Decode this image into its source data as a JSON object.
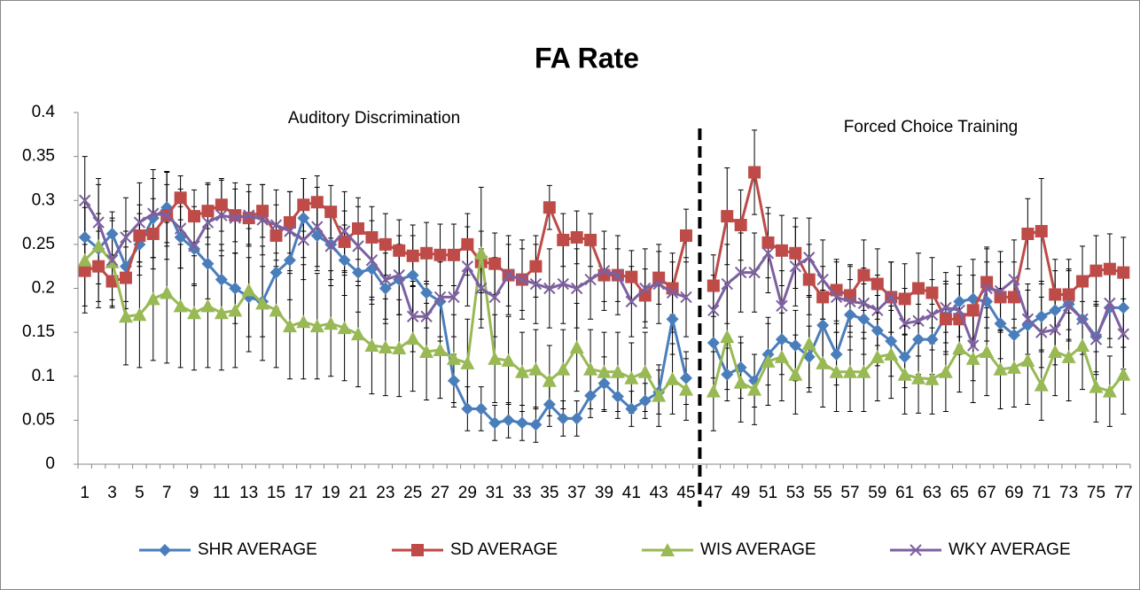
{
  "chart_data": {
    "type": "line",
    "title": "FA Rate",
    "annotations": [
      "Auditory Discrimination",
      "Forced Choice Training"
    ],
    "categories": [
      "1",
      null,
      "3",
      null,
      "5",
      null,
      "7",
      null,
      "9",
      null,
      "11",
      null,
      "13",
      null,
      "15",
      null,
      "17",
      null,
      "19",
      null,
      "21",
      null,
      "23",
      null,
      "25",
      null,
      "27",
      null,
      "29",
      null,
      "31",
      null,
      "33",
      null,
      "35",
      null,
      "37",
      null,
      "39",
      null,
      "41",
      null,
      "43",
      null,
      "45",
      null,
      "47",
      null,
      "49",
      null,
      "51",
      null,
      "53",
      null,
      "55",
      null,
      "57",
      null,
      "59",
      null,
      "61",
      null,
      "63",
      null,
      "65",
      null,
      "67",
      null,
      "69",
      null,
      "71",
      null,
      "73",
      null,
      "75",
      null,
      "77"
    ],
    "ylim": [
      0,
      0.4
    ],
    "yticks": [
      0,
      0.05,
      0.1,
      0.15,
      0.2,
      0.25,
      0.3,
      0.35,
      0.4
    ],
    "grid": false,
    "legend": "bottom",
    "series": [
      {
        "name": "SHR AVERAGE",
        "color": "#4a7ebb",
        "marker": "diamond",
        "values": [
          0.258,
          0.245,
          0.262,
          0.225,
          0.25,
          0.28,
          0.292,
          0.258,
          0.245,
          0.228,
          0.21,
          0.2,
          0.19,
          0.185,
          0.218,
          0.232,
          0.28,
          0.26,
          0.25,
          0.232,
          0.218,
          0.222,
          0.2,
          0.21,
          0.215,
          0.195,
          0.185,
          0.095,
          0.063,
          0.063,
          0.047,
          0.05,
          0.047,
          0.045,
          0.068,
          0.052,
          0.052,
          0.078,
          0.092,
          0.077,
          0.063,
          0.072,
          0.082,
          0.165,
          0.098,
          null,
          0.138,
          0.102,
          0.11,
          0.095,
          0.125,
          0.142,
          0.135,
          0.122,
          0.158,
          0.125,
          0.17,
          0.165,
          0.152,
          0.14,
          0.122,
          0.142,
          0.142,
          0.168,
          0.185,
          0.188,
          0.185,
          0.16,
          0.147,
          0.158,
          0.168,
          0.175,
          0.182,
          0.165,
          0.145,
          0.178,
          0.178
        ],
        "errors": [
          0.04,
          0.04,
          0.025,
          0.04,
          0.035,
          0.045,
          0.04,
          0.035,
          0.04,
          0.04,
          0.04,
          0.04,
          0.045,
          0.04,
          0.04,
          0.045,
          0.045,
          0.04,
          0.04,
          0.04,
          0.045,
          0.04,
          0.04,
          0.04,
          0.045,
          0.04,
          0.045,
          0.03,
          0.025,
          0.025,
          0.02,
          0.02,
          0.02,
          0.02,
          0.025,
          0.02,
          0.02,
          0.025,
          0.03,
          0.025,
          0.02,
          0.02,
          0.025,
          0.04,
          0.03,
          null,
          0.04,
          0.03,
          0.035,
          0.03,
          0.035,
          0.04,
          0.04,
          0.035,
          0.04,
          0.035,
          0.04,
          0.04,
          0.04,
          0.04,
          0.035,
          0.04,
          0.04,
          0.04,
          0.04,
          0.045,
          0.045,
          0.04,
          0.04,
          0.04,
          0.04,
          0.045,
          0.04,
          0.04,
          0.04,
          0.045,
          0.045
        ]
      },
      {
        "name": "SD AVERAGE",
        "color": "#be4b48",
        "marker": "square",
        "values": [
          0.22,
          0.225,
          0.208,
          0.212,
          0.26,
          0.262,
          0.283,
          0.303,
          0.282,
          0.288,
          0.295,
          0.283,
          0.28,
          0.288,
          0.26,
          0.275,
          0.295,
          0.298,
          0.287,
          0.253,
          0.268,
          0.258,
          0.25,
          0.243,
          0.237,
          0.24,
          0.238,
          0.238,
          0.25,
          0.23,
          0.228,
          0.215,
          0.21,
          0.225,
          0.292,
          0.255,
          0.258,
          0.255,
          0.215,
          0.215,
          0.213,
          0.192,
          0.212,
          0.2,
          0.26,
          null,
          0.203,
          0.282,
          0.272,
          0.332,
          0.252,
          0.243,
          0.24,
          0.21,
          0.19,
          0.198,
          0.192,
          0.215,
          0.205,
          0.19,
          0.188,
          0.2,
          0.195,
          0.165,
          0.165,
          0.175,
          0.207,
          0.19,
          0.19,
          0.262,
          0.265,
          0.193,
          0.193,
          0.208,
          0.22,
          0.222,
          0.218
        ],
        "errors": [
          0.04,
          0.04,
          0.03,
          0.035,
          0.035,
          0.04,
          0.035,
          0.025,
          0.03,
          0.03,
          0.03,
          0.03,
          0.03,
          0.03,
          0.035,
          0.035,
          0.03,
          0.03,
          0.03,
          0.035,
          0.035,
          0.035,
          0.035,
          0.035,
          0.035,
          0.035,
          0.035,
          0.035,
          0.035,
          0.035,
          0.035,
          0.035,
          0.035,
          0.035,
          0.025,
          0.03,
          0.03,
          0.03,
          0.03,
          0.03,
          0.03,
          0.03,
          0.03,
          0.03,
          0.03,
          null,
          0.035,
          0.055,
          0.04,
          0.048,
          0.04,
          0.04,
          0.04,
          0.04,
          0.035,
          0.035,
          0.035,
          0.04,
          0.04,
          0.04,
          0.04,
          0.04,
          0.04,
          0.04,
          0.04,
          0.04,
          0.04,
          0.04,
          0.04,
          0.04,
          0.06,
          0.04,
          0.04,
          0.04,
          0.04,
          0.04,
          0.04
        ]
      },
      {
        "name": "WIS AVERAGE",
        "color": "#98b954",
        "marker": "triangle",
        "values": [
          0.232,
          0.248,
          0.23,
          0.168,
          0.17,
          0.188,
          0.195,
          0.18,
          0.172,
          0.18,
          0.172,
          0.175,
          0.198,
          0.183,
          0.175,
          0.157,
          0.162,
          0.157,
          0.16,
          0.155,
          0.148,
          0.135,
          0.133,
          0.132,
          0.143,
          0.128,
          0.13,
          0.12,
          0.115,
          0.24,
          0.12,
          0.118,
          0.105,
          0.108,
          0.095,
          0.108,
          0.133,
          0.108,
          0.105,
          0.105,
          0.098,
          0.105,
          0.078,
          0.097,
          0.085,
          null,
          0.083,
          0.145,
          0.093,
          0.085,
          0.117,
          0.122,
          0.102,
          0.137,
          0.115,
          0.105,
          0.105,
          0.105,
          0.122,
          0.125,
          0.102,
          0.098,
          0.097,
          0.105,
          0.132,
          0.12,
          0.128,
          0.108,
          0.11,
          0.118,
          0.09,
          0.128,
          0.122,
          0.135,
          0.088,
          0.083,
          0.102
        ],
        "errors": [
          0.06,
          0.07,
          0.05,
          0.055,
          0.06,
          0.07,
          0.08,
          0.07,
          0.065,
          0.07,
          0.065,
          0.065,
          0.07,
          0.065,
          0.065,
          0.06,
          0.065,
          0.06,
          0.06,
          0.06,
          0.06,
          0.055,
          0.055,
          0.055,
          0.06,
          0.055,
          0.055,
          0.05,
          0.05,
          0.075,
          0.05,
          0.05,
          0.045,
          0.045,
          0.04,
          0.045,
          0.05,
          0.045,
          0.045,
          0.045,
          0.04,
          0.045,
          0.035,
          0.04,
          0.035,
          null,
          0.045,
          0.06,
          0.045,
          0.04,
          0.05,
          0.05,
          0.045,
          0.055,
          0.05,
          0.045,
          0.045,
          0.045,
          0.05,
          0.05,
          0.045,
          0.04,
          0.04,
          0.045,
          0.05,
          0.05,
          0.05,
          0.045,
          0.045,
          0.05,
          0.04,
          0.05,
          0.05,
          0.05,
          0.04,
          0.04,
          0.045
        ]
      },
      {
        "name": "WKY AVERAGE",
        "color": "#7d60a0",
        "marker": "x",
        "values": [
          0.3,
          0.275,
          0.232,
          0.258,
          0.275,
          0.285,
          0.283,
          0.268,
          0.248,
          0.275,
          0.283,
          0.28,
          0.283,
          0.278,
          0.272,
          0.265,
          0.255,
          0.27,
          0.248,
          0.265,
          0.248,
          0.232,
          0.21,
          0.215,
          0.168,
          0.168,
          0.19,
          0.19,
          0.225,
          0.2,
          0.19,
          0.215,
          0.21,
          0.205,
          0.2,
          0.205,
          0.2,
          0.21,
          0.22,
          0.215,
          0.185,
          0.2,
          0.205,
          0.195,
          0.19,
          null,
          0.175,
          0.205,
          0.218,
          0.218,
          0.24,
          0.18,
          0.225,
          0.235,
          0.21,
          0.19,
          0.185,
          0.183,
          0.175,
          0.19,
          0.16,
          0.163,
          0.17,
          0.178,
          0.175,
          0.135,
          0.2,
          0.197,
          0.21,
          0.165,
          0.15,
          0.153,
          0.18,
          0.165,
          0.142,
          0.183,
          0.148
        ],
        "errors": [
          0.05,
          0.05,
          0.045,
          0.045,
          0.045,
          0.05,
          0.05,
          0.045,
          0.045,
          0.045,
          0.04,
          0.04,
          0.035,
          0.04,
          0.04,
          0.045,
          0.045,
          0.045,
          0.045,
          0.045,
          0.045,
          0.045,
          0.045,
          0.045,
          0.04,
          0.04,
          0.045,
          0.045,
          0.045,
          0.045,
          0.045,
          0.045,
          0.045,
          0.045,
          0.045,
          0.045,
          0.045,
          0.045,
          0.045,
          0.045,
          0.04,
          0.045,
          0.045,
          0.045,
          0.045,
          null,
          0.04,
          0.045,
          0.045,
          0.045,
          0.045,
          0.04,
          0.045,
          0.045,
          0.045,
          0.04,
          0.04,
          0.04,
          0.04,
          0.04,
          0.04,
          0.04,
          0.04,
          0.04,
          0.04,
          0.04,
          0.045,
          0.045,
          0.045,
          0.04,
          0.04,
          0.04,
          0.04,
          0.04,
          0.04,
          0.04,
          0.04
        ]
      }
    ]
  }
}
